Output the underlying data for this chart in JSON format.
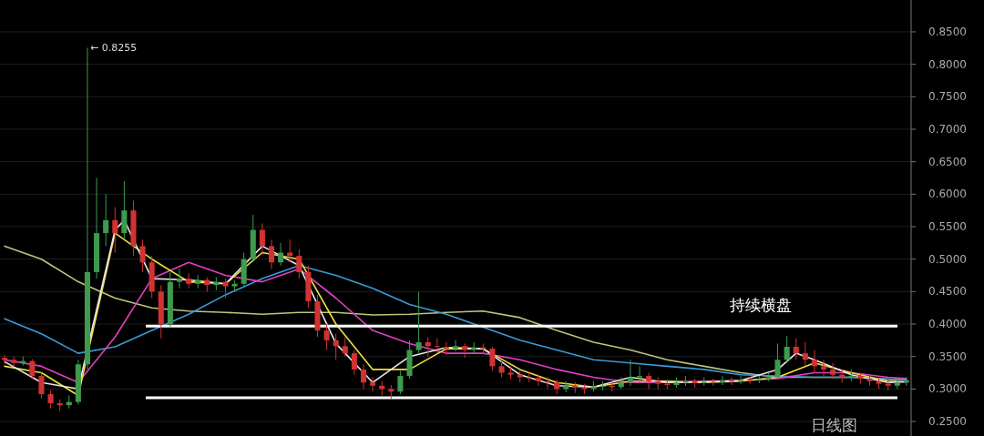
{
  "chart_data": {
    "type": "candlestick",
    "categories": [
      null,
      null,
      null,
      null,
      null,
      null,
      null,
      null,
      null,
      null,
      null,
      null,
      null,
      null,
      null,
      null,
      null,
      null,
      null,
      null,
      null,
      null,
      null,
      null,
      null,
      null,
      null,
      null,
      null,
      null,
      null,
      null,
      null,
      null,
      null,
      null,
      null,
      null,
      null,
      null,
      null,
      null,
      null,
      null,
      null,
      null,
      null,
      null,
      null,
      null,
      null,
      null,
      null,
      null,
      null,
      null,
      null,
      null,
      null,
      null,
      null,
      null,
      null,
      null,
      null,
      null,
      null,
      null,
      null,
      null,
      null,
      null,
      null,
      null,
      null,
      null,
      null,
      null,
      null,
      null,
      null,
      null,
      null,
      null,
      null,
      null,
      null,
      null,
      null,
      null,
      null,
      null,
      null,
      null,
      null,
      null,
      null,
      null,
      null
    ],
    "ohlc": [
      [
        0.348,
        0.352,
        0.338,
        0.345
      ],
      [
        0.345,
        0.35,
        0.334,
        0.34
      ],
      [
        0.34,
        0.35,
        0.336,
        0.343
      ],
      [
        0.343,
        0.346,
        0.315,
        0.32
      ],
      [
        0.32,
        0.325,
        0.285,
        0.292
      ],
      [
        0.292,
        0.298,
        0.27,
        0.278
      ],
      [
        0.278,
        0.284,
        0.266,
        0.275
      ],
      [
        0.275,
        0.29,
        0.27,
        0.28
      ],
      [
        0.28,
        0.345,
        0.276,
        0.338
      ],
      [
        0.338,
        0.8255,
        0.33,
        0.48
      ],
      [
        0.48,
        0.625,
        0.47,
        0.54
      ],
      [
        0.54,
        0.6,
        0.52,
        0.56
      ],
      [
        0.56,
        0.58,
        0.51,
        0.54
      ],
      [
        0.54,
        0.62,
        0.53,
        0.575
      ],
      [
        0.575,
        0.59,
        0.505,
        0.52
      ],
      [
        0.52,
        0.53,
        0.48,
        0.495
      ],
      [
        0.495,
        0.505,
        0.44,
        0.45
      ],
      [
        0.45,
        0.46,
        0.378,
        0.4
      ],
      [
        0.4,
        0.48,
        0.395,
        0.465
      ],
      [
        0.465,
        0.485,
        0.455,
        0.47
      ],
      [
        0.47,
        0.478,
        0.455,
        0.462
      ],
      [
        0.462,
        0.475,
        0.455,
        0.468
      ],
      [
        0.468,
        0.472,
        0.45,
        0.46
      ],
      [
        0.46,
        0.472,
        0.452,
        0.465
      ],
      [
        0.465,
        0.47,
        0.44,
        0.458
      ],
      [
        0.458,
        0.468,
        0.45,
        0.462
      ],
      [
        0.462,
        0.51,
        0.458,
        0.5
      ],
      [
        0.5,
        0.568,
        0.495,
        0.545
      ],
      [
        0.545,
        0.555,
        0.51,
        0.52
      ],
      [
        0.52,
        0.53,
        0.485,
        0.495
      ],
      [
        0.495,
        0.525,
        0.49,
        0.51
      ],
      [
        0.51,
        0.53,
        0.495,
        0.505
      ],
      [
        0.505,
        0.515,
        0.47,
        0.48
      ],
      [
        0.48,
        0.49,
        0.425,
        0.435
      ],
      [
        0.435,
        0.445,
        0.38,
        0.39
      ],
      [
        0.39,
        0.4,
        0.36,
        0.375
      ],
      [
        0.375,
        0.385,
        0.345,
        0.366
      ],
      [
        0.366,
        0.38,
        0.35,
        0.355
      ],
      [
        0.355,
        0.36,
        0.322,
        0.33
      ],
      [
        0.33,
        0.338,
        0.3,
        0.31
      ],
      [
        0.31,
        0.318,
        0.296,
        0.305
      ],
      [
        0.305,
        0.312,
        0.29,
        0.3
      ],
      [
        0.3,
        0.306,
        0.285,
        0.296
      ],
      [
        0.296,
        0.328,
        0.292,
        0.32
      ],
      [
        0.32,
        0.375,
        0.316,
        0.36
      ],
      [
        0.36,
        0.45,
        0.355,
        0.372
      ],
      [
        0.372,
        0.38,
        0.35,
        0.366
      ],
      [
        0.366,
        0.378,
        0.355,
        0.365
      ],
      [
        0.365,
        0.372,
        0.352,
        0.362
      ],
      [
        0.362,
        0.375,
        0.358,
        0.366
      ],
      [
        0.366,
        0.37,
        0.348,
        0.36
      ],
      [
        0.36,
        0.372,
        0.355,
        0.364
      ],
      [
        0.364,
        0.37,
        0.355,
        0.362
      ],
      [
        0.362,
        0.365,
        0.328,
        0.335
      ],
      [
        0.335,
        0.345,
        0.318,
        0.325
      ],
      [
        0.325,
        0.335,
        0.315,
        0.322
      ],
      [
        0.322,
        0.328,
        0.31,
        0.318
      ],
      [
        0.318,
        0.325,
        0.31,
        0.317
      ],
      [
        0.317,
        0.322,
        0.305,
        0.312
      ],
      [
        0.312,
        0.318,
        0.3,
        0.31
      ],
      [
        0.31,
        0.314,
        0.292,
        0.3
      ],
      [
        0.3,
        0.312,
        0.295,
        0.305
      ],
      [
        0.305,
        0.31,
        0.294,
        0.302
      ],
      [
        0.302,
        0.308,
        0.292,
        0.3
      ],
      [
        0.3,
        0.312,
        0.296,
        0.304
      ],
      [
        0.304,
        0.312,
        0.298,
        0.305
      ],
      [
        0.305,
        0.31,
        0.296,
        0.303
      ],
      [
        0.303,
        0.318,
        0.3,
        0.31
      ],
      [
        0.31,
        0.345,
        0.305,
        0.318
      ],
      [
        0.318,
        0.335,
        0.31,
        0.32
      ],
      [
        0.32,
        0.325,
        0.3,
        0.312
      ],
      [
        0.312,
        0.318,
        0.3,
        0.308
      ],
      [
        0.308,
        0.315,
        0.3,
        0.306
      ],
      [
        0.306,
        0.318,
        0.302,
        0.31
      ],
      [
        0.31,
        0.32,
        0.305,
        0.312
      ],
      [
        0.312,
        0.316,
        0.302,
        0.309
      ],
      [
        0.309,
        0.318,
        0.305,
        0.311
      ],
      [
        0.311,
        0.316,
        0.305,
        0.31
      ],
      [
        0.31,
        0.32,
        0.306,
        0.313
      ],
      [
        0.313,
        0.318,
        0.306,
        0.312
      ],
      [
        0.312,
        0.32,
        0.308,
        0.314
      ],
      [
        0.314,
        0.318,
        0.308,
        0.313
      ],
      [
        0.313,
        0.32,
        0.309,
        0.315
      ],
      [
        0.315,
        0.325,
        0.312,
        0.318
      ],
      [
        0.318,
        0.37,
        0.315,
        0.345
      ],
      [
        0.345,
        0.382,
        0.34,
        0.365
      ],
      [
        0.365,
        0.378,
        0.345,
        0.355
      ],
      [
        0.355,
        0.372,
        0.335,
        0.345
      ],
      [
        0.345,
        0.36,
        0.325,
        0.335
      ],
      [
        0.335,
        0.345,
        0.32,
        0.33
      ],
      [
        0.33,
        0.34,
        0.315,
        0.322
      ],
      [
        0.322,
        0.33,
        0.31,
        0.318
      ],
      [
        0.318,
        0.33,
        0.312,
        0.32
      ],
      [
        0.32,
        0.325,
        0.308,
        0.316
      ],
      [
        0.316,
        0.322,
        0.305,
        0.312
      ],
      [
        0.312,
        0.318,
        0.3,
        0.308
      ],
      [
        0.308,
        0.315,
        0.298,
        0.305
      ],
      [
        0.305,
        0.316,
        0.3,
        0.31
      ],
      [
        0.31,
        0.318,
        0.305,
        0.313
      ]
    ],
    "series": [
      {
        "type": "line",
        "color": "#b8c878",
        "values": [
          0.52,
          null,
          null,
          null,
          0.5,
          null,
          null,
          null,
          0.465,
          null,
          null,
          null,
          0.44,
          null,
          null,
          null,
          0.425,
          null,
          null,
          null,
          0.42,
          null,
          null,
          null,
          0.418,
          null,
          null,
          null,
          0.415,
          null,
          null,
          null,
          0.418,
          null,
          null,
          null,
          0.418,
          null,
          null,
          null,
          0.414,
          null,
          null,
          null,
          0.415,
          null,
          null,
          null,
          0.418,
          null,
          null,
          null,
          0.42,
          null,
          null,
          null,
          0.41,
          null,
          null,
          null,
          0.39,
          null,
          null,
          null,
          0.372,
          null,
          null,
          null,
          0.36,
          null,
          null,
          null,
          0.345,
          null,
          null,
          null,
          0.335,
          null,
          null,
          null,
          0.325,
          null,
          null,
          null,
          0.318,
          null,
          null,
          null,
          0.318,
          null,
          null,
          null,
          0.318,
          null,
          null,
          null,
          0.315,
          null,
          0.314
        ]
      },
      {
        "type": "line",
        "color": "#3a9ad9",
        "values": [
          0.408,
          null,
          null,
          null,
          0.385,
          null,
          null,
          null,
          0.355,
          null,
          null,
          null,
          0.365,
          null,
          null,
          null,
          0.39,
          null,
          null,
          null,
          0.415,
          null,
          null,
          null,
          0.445,
          null,
          null,
          null,
          0.47,
          null,
          null,
          null,
          0.49,
          null,
          null,
          null,
          0.475,
          null,
          null,
          null,
          0.455,
          null,
          null,
          null,
          0.43,
          null,
          null,
          null,
          0.415,
          null,
          null,
          null,
          0.395,
          null,
          null,
          null,
          0.375,
          null,
          null,
          null,
          0.36,
          null,
          null,
          null,
          0.345,
          null,
          null,
          null,
          0.34,
          null,
          null,
          null,
          0.335,
          null,
          null,
          null,
          0.33,
          null,
          null,
          null,
          0.322,
          null,
          null,
          null,
          null,
          null,
          null,
          null,
          0.318,
          null,
          null,
          null,
          0.318,
          null,
          null,
          null,
          0.315,
          null,
          0.314
        ]
      },
      {
        "type": "line",
        "color": "#e040c0",
        "values": [
          0.345,
          null,
          null,
          null,
          0.335,
          null,
          null,
          null,
          0.31,
          null,
          null,
          null,
          0.38,
          null,
          null,
          null,
          0.47,
          null,
          null,
          null,
          0.495,
          null,
          null,
          null,
          0.475,
          null,
          null,
          null,
          0.465,
          null,
          null,
          null,
          0.485,
          null,
          null,
          null,
          0.44,
          null,
          null,
          null,
          0.39,
          null,
          null,
          null,
          0.37,
          null,
          null,
          null,
          0.355,
          null,
          null,
          null,
          0.355,
          null,
          null,
          null,
          0.345,
          null,
          null,
          null,
          0.33,
          null,
          null,
          null,
          0.318,
          null,
          null,
          null,
          0.31,
          null,
          null,
          null,
          0.31,
          null,
          null,
          null,
          0.312,
          null,
          null,
          null,
          0.313,
          null,
          null,
          null,
          0.316,
          null,
          null,
          null,
          0.325,
          null,
          null,
          null,
          0.325,
          null,
          null,
          null,
          0.318,
          null,
          0.316
        ]
      },
      {
        "type": "line",
        "color": "#f0e040",
        "values": [
          0.335,
          null,
          null,
          null,
          0.325,
          null,
          null,
          null,
          0.29,
          null,
          null,
          null,
          0.54,
          null,
          null,
          null,
          0.5,
          null,
          null,
          null,
          0.465,
          null,
          null,
          null,
          0.462,
          null,
          null,
          null,
          0.51,
          null,
          null,
          null,
          0.5,
          null,
          null,
          null,
          0.4,
          null,
          null,
          null,
          0.33,
          null,
          null,
          null,
          0.33,
          null,
          null,
          null,
          0.362,
          null,
          null,
          null,
          0.362,
          null,
          null,
          null,
          0.33,
          null,
          null,
          null,
          0.31,
          null,
          null,
          null,
          0.303,
          null,
          null,
          null,
          0.312,
          null,
          null,
          null,
          0.312,
          null,
          null,
          null,
          0.31,
          null,
          null,
          null,
          0.312,
          null,
          null,
          null,
          0.318,
          null,
          null,
          null,
          0.34,
          null,
          null,
          null,
          0.325,
          null,
          null,
          null,
          0.312,
          null,
          0.311
        ]
      },
      {
        "type": "line",
        "color": "#e8e8e8",
        "values": [
          0.342,
          null,
          null,
          null,
          0.31,
          null,
          null,
          null,
          0.3,
          null,
          null,
          null,
          0.545,
          0.56,
          null,
          null,
          0.47,
          null,
          null,
          null,
          0.468,
          null,
          null,
          null,
          0.462,
          null,
          null,
          null,
          0.52,
          null,
          null,
          null,
          0.49,
          null,
          null,
          null,
          0.37,
          null,
          null,
          null,
          0.31,
          null,
          null,
          null,
          0.35,
          null,
          null,
          null,
          0.364,
          null,
          null,
          null,
          0.362,
          null,
          null,
          null,
          0.322,
          null,
          null,
          null,
          0.305,
          null,
          null,
          null,
          0.303,
          null,
          null,
          null,
          0.318,
          null,
          null,
          null,
          0.31,
          null,
          null,
          null,
          0.311,
          null,
          null,
          null,
          0.313,
          null,
          null,
          null,
          0.33,
          null,
          0.355,
          null,
          0.345,
          null,
          null,
          null,
          0.322,
          null,
          null,
          null,
          0.31,
          null,
          0.311
        ]
      }
    ],
    "ylim": [
      0.2276,
      0.899
    ],
    "yticks": [
      {
        "value": 0.25,
        "label": "0.2500"
      },
      {
        "value": 0.3,
        "label": "0.3000"
      },
      {
        "value": 0.35,
        "label": "0.3500"
      },
      {
        "value": 0.4,
        "label": "0.4000"
      },
      {
        "value": 0.45,
        "label": "0.4500"
      },
      {
        "value": 0.5,
        "label": "0.5000"
      },
      {
        "value": 0.55,
        "label": "0.5500"
      },
      {
        "value": 0.6,
        "label": "0.6000"
      },
      {
        "value": 0.65,
        "label": "0.6500"
      },
      {
        "value": 0.7,
        "label": "0.7000"
      },
      {
        "value": 0.75,
        "label": "0.7500"
      },
      {
        "value": 0.8,
        "label": "0.8000"
      },
      {
        "value": 0.85,
        "label": "0.8500"
      }
    ],
    "grid": "y",
    "ref_lines": [
      {
        "axis": "y",
        "value": 0.397,
        "label": "持续横盘",
        "color": "#ffffff"
      },
      {
        "axis": "y",
        "value": 0.2865,
        "color": "#ffffff"
      }
    ],
    "annotations": [
      "← 0.8255",
      "日线图"
    ]
  }
}
